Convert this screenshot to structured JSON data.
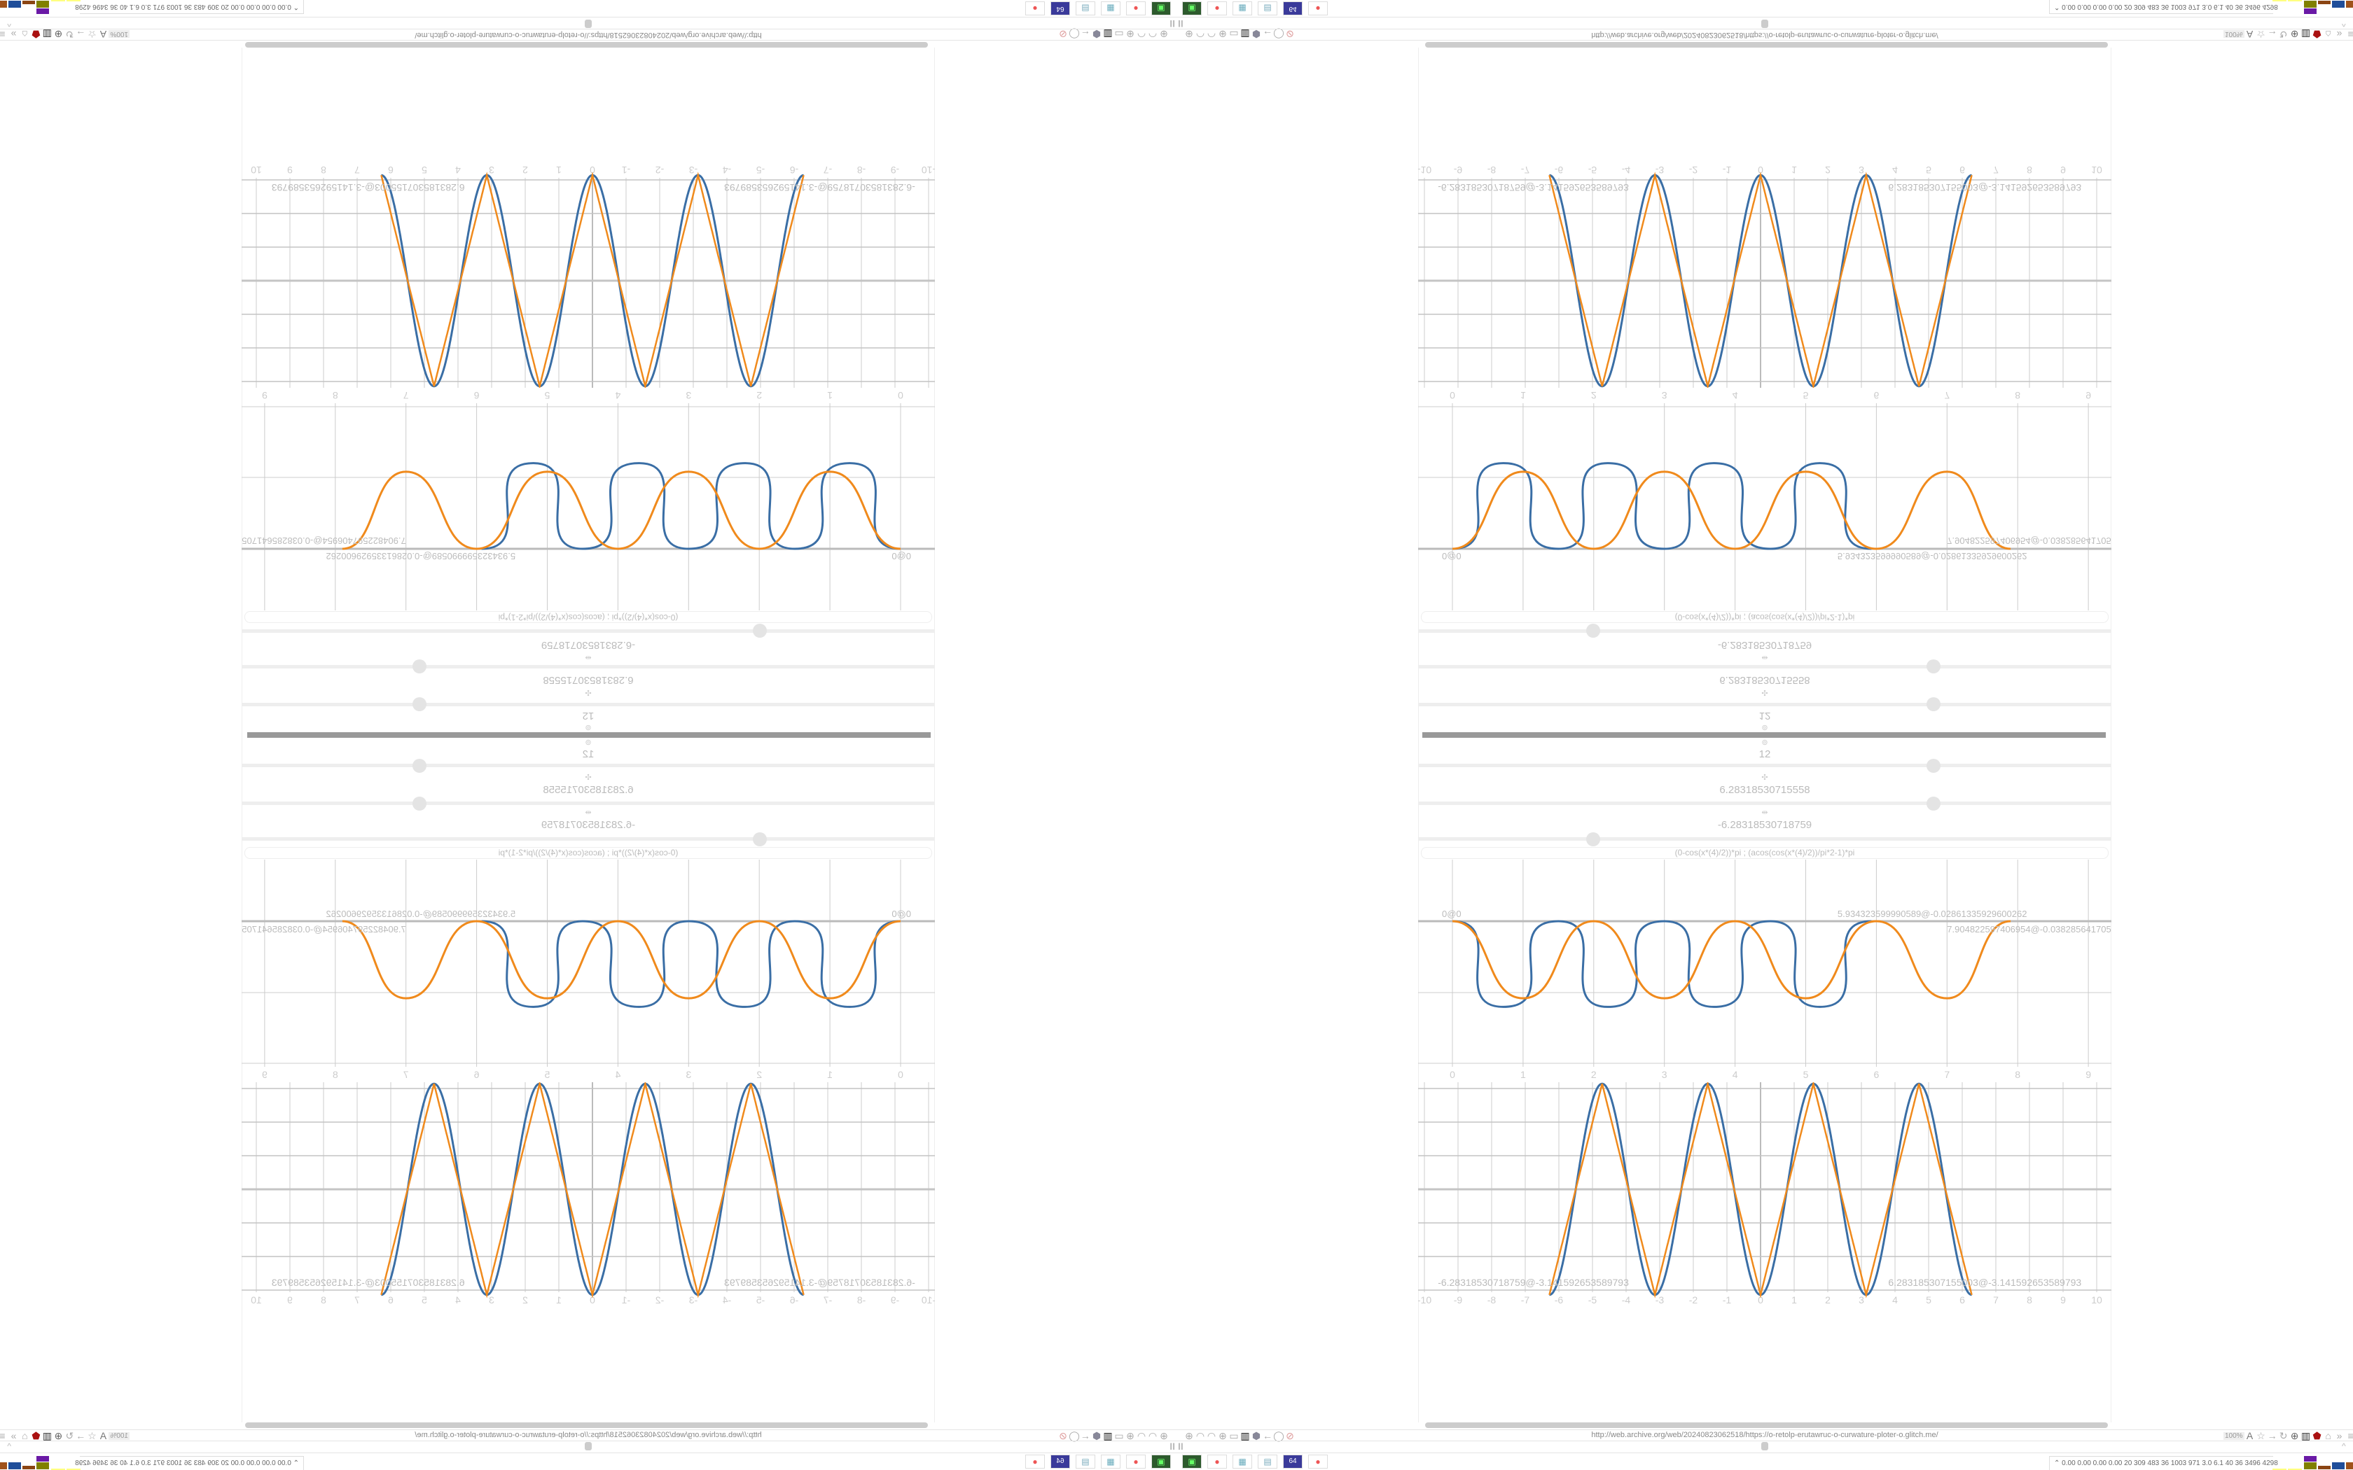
{
  "browser": {
    "url": "http://web.archive.org/web/20240823062518/https://o-retolp-erutawruc-o-curwature-ploter-o.glitch.me/",
    "zoom": "100%",
    "pause_label": "II",
    "collapse_icon": "^",
    "toolbar_icons": [
      "translate-icon",
      "star-icon",
      "forward-icon",
      "reload-icon",
      "globe-icon",
      "trash-icon",
      "shield-icon",
      "extension-icon",
      "overflow-icon",
      "menu-icon"
    ],
    "center_icons": [
      "globe-icon",
      "arc-icon",
      "arc-icon",
      "globe-icon",
      "folder-icon",
      "trash-icon",
      "shield-badge-icon",
      "back-icon",
      "shield-icon",
      "lock-crossed-icon"
    ],
    "stats_text": "0.00 0.00 0.00 0.00  20  309  483  36  1003 971  3.0  6.1  40  36  3496 4298",
    "taskbar": [
      "terminal-icon",
      "firefox-icon",
      "calculator-icon",
      "notepad-icon",
      "floppy-icon",
      "firefox-icon"
    ],
    "floppy_label": "64",
    "colors": {
      "bar1": "#ffff80",
      "bar2": "#808000",
      "bar3": "#6a1aa6",
      "bar4": "#8b4513",
      "bar5": "#1f4e9a",
      "bar6": "#a0521a",
      "bar7": "#5ccc5c",
      "bar8": "#22aa22"
    }
  },
  "controls": {
    "sliders": [
      {
        "icon": "⊚",
        "value": "12",
        "fraction": 0.67
      },
      {
        "icon": "✣",
        "value": "6.28318530715558",
        "fraction": 0.67
      },
      {
        "icon": "⇹",
        "value": "-6.28318530718759",
        "fraction": 0.26
      }
    ],
    "formula": "(0-cos(x*(4)/2))*pi ; (acos(cos(x*(4)/2))/pi*2-1)*pi"
  },
  "chart_data": [
    {
      "type": "line",
      "x_ticks": [
        "0",
        "1",
        "2",
        "3",
        "4",
        "5",
        "6",
        "7",
        "8",
        "9"
      ],
      "xlim": [
        -0.5,
        9.4
      ],
      "ylim": [
        -2,
        0.9
      ],
      "grid": true,
      "point_labels": [
        "0@0",
        "5.934323599990589@-0.02861335929600262",
        "7.904822597406954@-0.03828564170530687"
      ],
      "series": [
        {
          "color": "#3a6ea5",
          "points": [
            [
              0,
              0
            ],
            [
              0.72,
              -1.2
            ],
            [
              1.5,
              0
            ],
            [
              2.2,
              -1.2
            ],
            [
              3.0,
              0
            ],
            [
              3.7,
              -1.2
            ],
            [
              4.5,
              0
            ],
            [
              5.2,
              -1.2
            ],
            [
              5.93,
              0
            ]
          ]
        },
        {
          "color": "#f08a1c",
          "points": [
            [
              0,
              0
            ],
            [
              1,
              -1.08
            ],
            [
              2,
              0
            ],
            [
              3,
              -1.08
            ],
            [
              4,
              0
            ],
            [
              5,
              -1.08
            ],
            [
              6,
              0
            ],
            [
              7,
              -1.08
            ],
            [
              7.9,
              0
            ]
          ]
        }
      ]
    },
    {
      "type": "line",
      "x_ticks": [
        "-10",
        "-9",
        "-8",
        "-7",
        "-6",
        "-5",
        "-4",
        "-3",
        "-2",
        "-1",
        "0",
        "1",
        "2",
        "3",
        "4",
        "5",
        "6",
        "7",
        "8",
        "9",
        "10"
      ],
      "xlim": [
        -10,
        10
      ],
      "ylim": [
        -3.2,
        3.2
      ],
      "x_range": [
        -6.28318530718759,
        6.28318530715558
      ],
      "grid": true,
      "point_labels": [
        "-6.28318530718759@-3.141592653589793",
        "6.283185307155003@-3.141592653589793"
      ],
      "series": [
        {
          "formula": "(0-cos(x*(4)/2))*pi",
          "color": "#3a6ea5"
        },
        {
          "formula": "(acos(cos(x*(4)/2))/pi*2-1)*pi",
          "color": "#f08a1c"
        }
      ]
    }
  ]
}
